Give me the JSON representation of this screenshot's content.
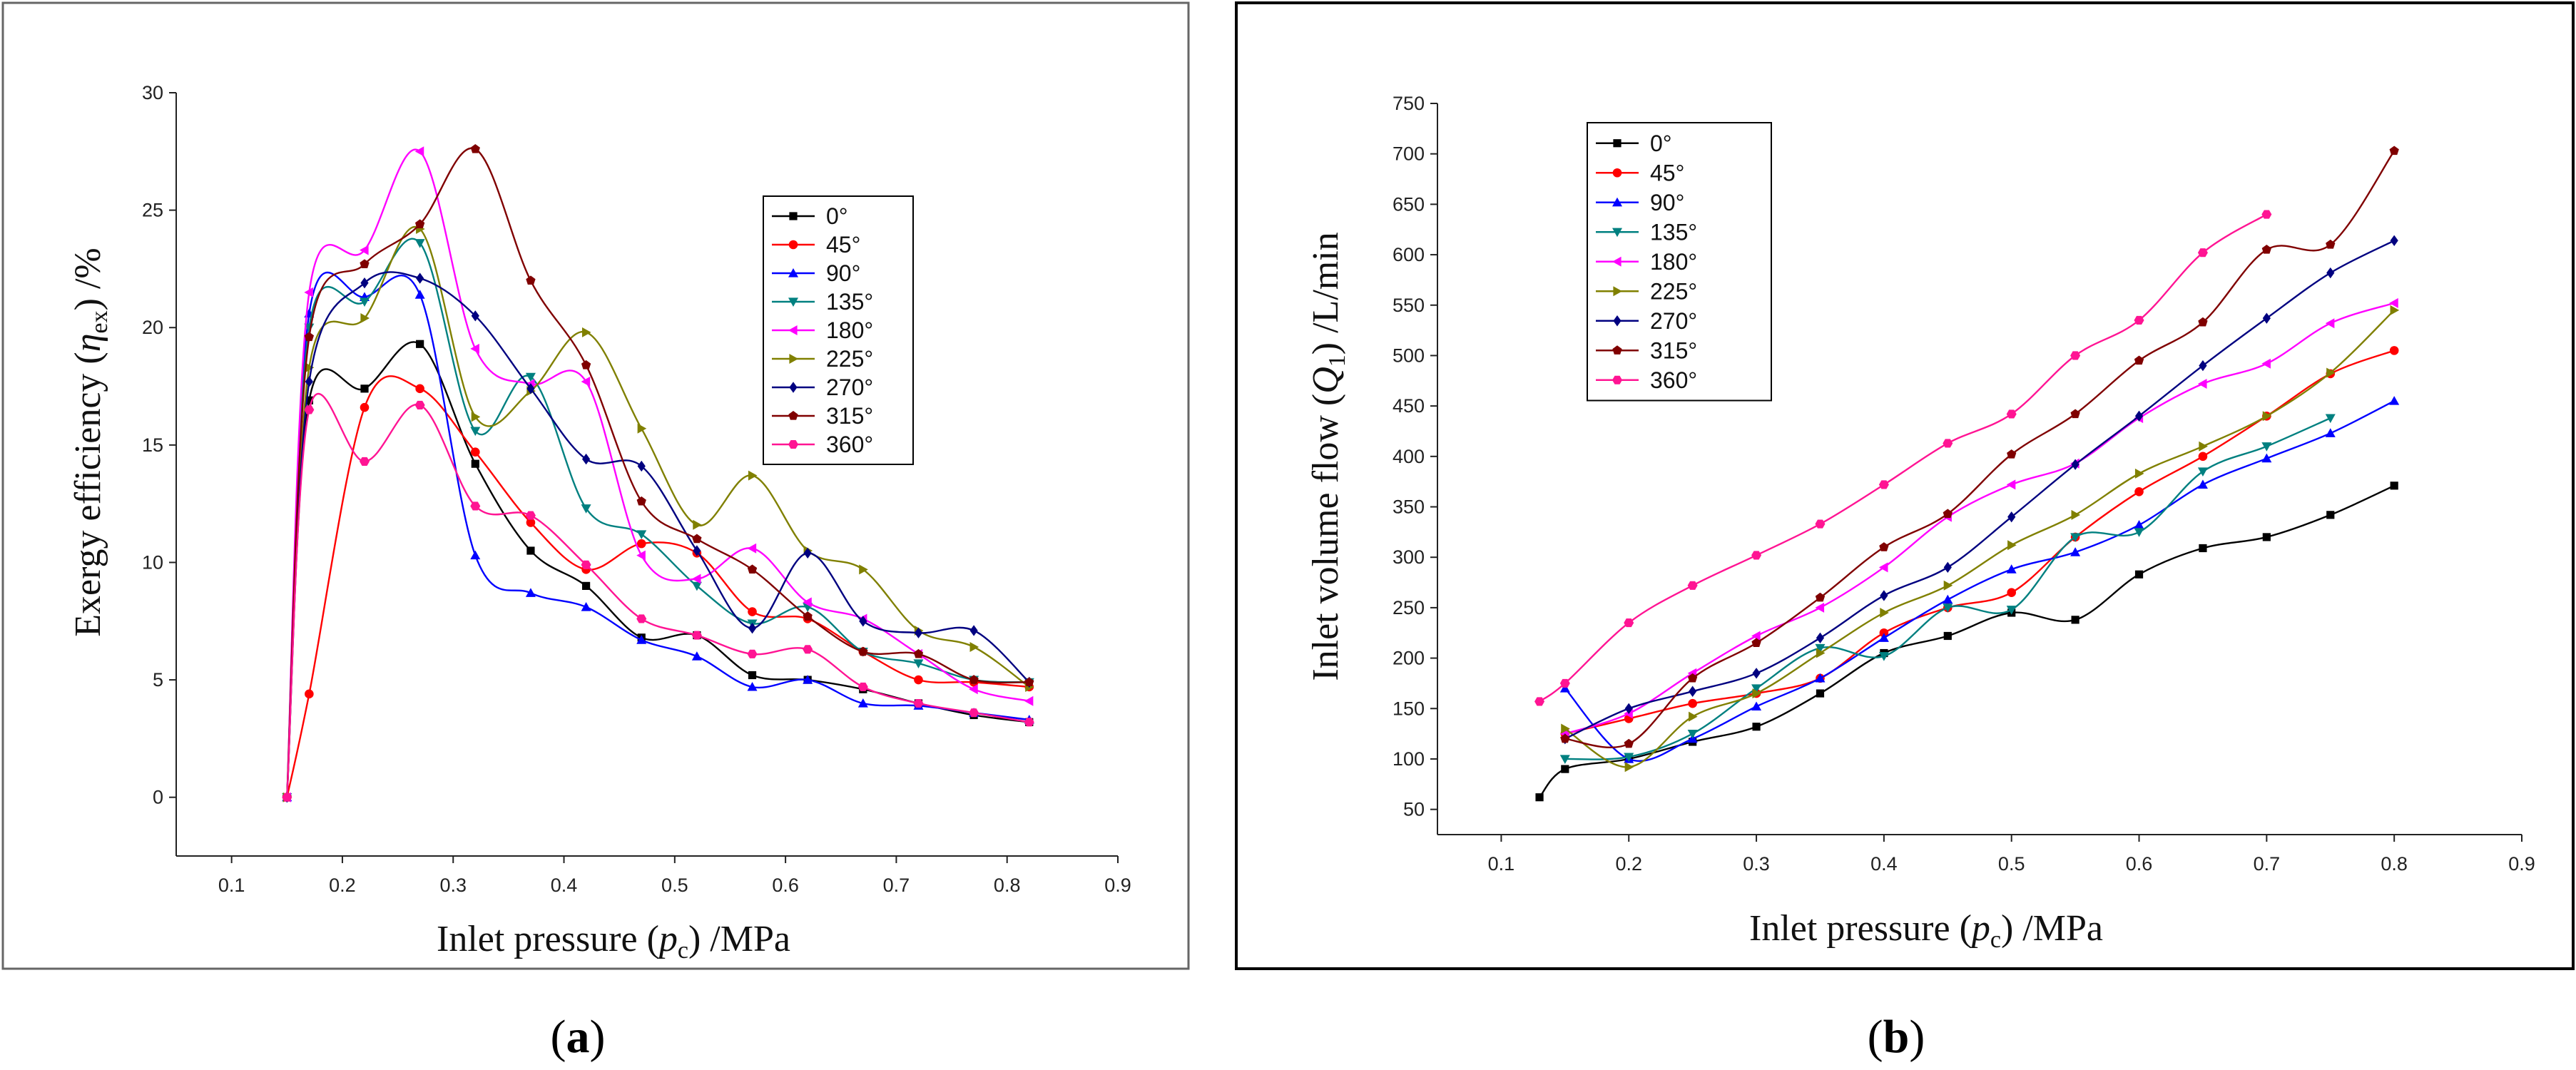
{
  "chart_data": [
    {
      "type": "line",
      "panel_label": "(a)",
      "xlabel": {
        "prefix": "Inlet pressure (",
        "var": "p",
        "sub": "c",
        "suffix": ") /MPa"
      },
      "ylabel": {
        "prefix": "Exergy efficiency (",
        "var": "η",
        "sub": "ex",
        "suffix": ") /%"
      },
      "xlim": [
        0.05,
        0.9
      ],
      "ylim": [
        -2.5,
        30
      ],
      "xticks": [
        "0.1",
        "0.2",
        "0.3",
        "0.4",
        "0.5",
        "0.6",
        "0.7",
        "0.8",
        "0.9"
      ],
      "xtick_values": [
        0.1,
        0.2,
        0.3,
        0.4,
        0.5,
        0.6,
        0.7,
        0.8,
        0.9
      ],
      "yticks": [
        "0",
        "5",
        "10",
        "15",
        "20",
        "25",
        "30"
      ],
      "ytick_values": [
        0,
        5,
        10,
        15,
        20,
        25,
        30
      ],
      "legend_position": "top-right",
      "series": [
        {
          "name": "0°",
          "color": "#000000",
          "marker": "square",
          "x": [
            0.15,
            0.17,
            0.22,
            0.27,
            0.32,
            0.37,
            0.42,
            0.47,
            0.52,
            0.57,
            0.62,
            0.67,
            0.72,
            0.77,
            0.82
          ],
          "values": [
            0,
            16.9,
            17.4,
            19.3,
            14.2,
            10.5,
            9.0,
            6.8,
            6.9,
            5.2,
            5.0,
            4.6,
            4.0,
            3.5,
            3.2
          ]
        },
        {
          "name": "45°",
          "color": "#ff0000",
          "marker": "circle",
          "x": [
            0.15,
            0.17,
            0.22,
            0.27,
            0.32,
            0.37,
            0.42,
            0.47,
            0.52,
            0.57,
            0.62,
            0.67,
            0.72,
            0.77,
            0.82
          ],
          "values": [
            0,
            4.4,
            16.6,
            17.4,
            14.7,
            11.7,
            9.7,
            10.8,
            10.4,
            7.9,
            7.6,
            6.2,
            5.0,
            4.9,
            4.7
          ]
        },
        {
          "name": "90°",
          "color": "#0000ff",
          "marker": "triangle-up",
          "x": [
            0.15,
            0.17,
            0.22,
            0.27,
            0.32,
            0.37,
            0.42,
            0.47,
            0.52,
            0.57,
            0.62,
            0.67,
            0.72,
            0.77,
            0.82
          ],
          "values": [
            0,
            20.6,
            21.3,
            21.4,
            10.3,
            8.7,
            8.1,
            6.7,
            6.0,
            4.7,
            5.0,
            4.0,
            3.9,
            3.6,
            3.3
          ]
        },
        {
          "name": "135°",
          "color": "#008080",
          "marker": "triangle-down",
          "x": [
            0.15,
            0.17,
            0.22,
            0.27,
            0.32,
            0.37,
            0.42,
            0.47,
            0.52,
            0.57,
            0.62,
            0.67,
            0.72,
            0.77,
            0.82
          ],
          "values": [
            0,
            20.0,
            21.1,
            23.6,
            15.6,
            17.9,
            12.3,
            11.2,
            9.0,
            7.4,
            8.1,
            6.2,
            5.7,
            5.0,
            4.9
          ]
        },
        {
          "name": "180°",
          "color": "#ff00ff",
          "marker": "triangle-left",
          "x": [
            0.15,
            0.17,
            0.22,
            0.27,
            0.32,
            0.37,
            0.42,
            0.47,
            0.52,
            0.57,
            0.62,
            0.67,
            0.72,
            0.77,
            0.82
          ],
          "values": [
            0,
            21.5,
            23.3,
            27.5,
            19.1,
            17.6,
            17.7,
            10.3,
            9.3,
            10.6,
            8.3,
            7.6,
            6.1,
            4.6,
            4.1
          ]
        },
        {
          "name": "225°",
          "color": "#808000",
          "marker": "triangle-right",
          "x": [
            0.15,
            0.17,
            0.22,
            0.27,
            0.32,
            0.37,
            0.42,
            0.47,
            0.52,
            0.57,
            0.62,
            0.67,
            0.72,
            0.77,
            0.82
          ],
          "values": [
            0,
            18.3,
            20.4,
            24.2,
            16.2,
            17.3,
            19.8,
            15.7,
            11.6,
            13.7,
            10.5,
            9.7,
            7.1,
            6.4,
            4.7
          ]
        },
        {
          "name": "270°",
          "color": "#000080",
          "marker": "diamond",
          "x": [
            0.15,
            0.17,
            0.22,
            0.27,
            0.32,
            0.37,
            0.42,
            0.47,
            0.52,
            0.57,
            0.62,
            0.67,
            0.72,
            0.77,
            0.82
          ],
          "values": [
            0,
            17.7,
            21.9,
            22.1,
            20.5,
            17.4,
            14.4,
            14.1,
            10.5,
            7.2,
            10.4,
            7.5,
            7.0,
            7.1,
            4.9
          ]
        },
        {
          "name": "315°",
          "color": "#800000",
          "marker": "pentagon",
          "x": [
            0.15,
            0.17,
            0.22,
            0.27,
            0.32,
            0.37,
            0.42,
            0.47,
            0.52,
            0.57,
            0.62,
            0.67,
            0.72,
            0.77,
            0.82
          ],
          "values": [
            0,
            19.6,
            22.7,
            24.4,
            27.6,
            22.0,
            18.4,
            12.6,
            11.0,
            9.7,
            7.7,
            6.2,
            6.1,
            5.0,
            4.9
          ]
        },
        {
          "name": "360°",
          "color": "#ff1493",
          "marker": "hexagon",
          "x": [
            0.15,
            0.17,
            0.22,
            0.27,
            0.32,
            0.37,
            0.42,
            0.47,
            0.52,
            0.57,
            0.62,
            0.67,
            0.72,
            0.77,
            0.82
          ],
          "values": [
            0,
            16.5,
            14.3,
            16.7,
            12.4,
            12.0,
            9.9,
            7.6,
            6.9,
            6.1,
            6.3,
            4.7,
            4.0,
            3.6,
            3.2
          ]
        }
      ]
    },
    {
      "type": "line",
      "panel_label": "(b)",
      "xlabel": {
        "prefix": "Inlet pressure (",
        "var": "p",
        "sub": "c",
        "suffix": ") /MPa"
      },
      "ylabel": {
        "prefix": "Inlet volume flow (",
        "var": "Q",
        "sub": "1",
        "suffix": ") /L/min"
      },
      "xlim": [
        0.05,
        0.9
      ],
      "ylim": [
        25,
        750
      ],
      "xticks": [
        "0.1",
        "0.2",
        "0.3",
        "0.4",
        "0.5",
        "0.6",
        "0.7",
        "0.8",
        "0.9"
      ],
      "xtick_values": [
        0.1,
        0.2,
        0.3,
        0.4,
        0.5,
        0.6,
        0.7,
        0.8,
        0.9
      ],
      "yticks": [
        "50",
        "100",
        "150",
        "200",
        "250",
        "300",
        "350",
        "400",
        "450",
        "500",
        "550",
        "600",
        "650",
        "700",
        "750"
      ],
      "ytick_values": [
        50,
        100,
        150,
        200,
        250,
        300,
        350,
        400,
        450,
        500,
        550,
        600,
        650,
        700,
        750
      ],
      "legend_position": "top-left",
      "series": [
        {
          "name": "0°",
          "color": "#000000",
          "marker": "square",
          "x": [
            0.13,
            0.15,
            0.2,
            0.25,
            0.3,
            0.35,
            0.4,
            0.45,
            0.5,
            0.55,
            0.6,
            0.65,
            0.7,
            0.75,
            0.8
          ],
          "values": [
            62,
            90,
            100,
            117,
            132,
            165,
            205,
            222,
            245,
            238,
            283,
            309,
            320,
            342,
            371
          ]
        },
        {
          "name": "45°",
          "color": "#ff0000",
          "marker": "circle",
          "x": [
            0.15,
            0.2,
            0.25,
            0.3,
            0.35,
            0.4,
            0.45,
            0.5,
            0.55,
            0.6,
            0.65,
            0.7,
            0.75,
            0.8
          ],
          "values": [
            125,
            140,
            155,
            165,
            180,
            225,
            250,
            265,
            320,
            365,
            400,
            440,
            482,
            505
          ]
        },
        {
          "name": "90°",
          "color": "#0000ff",
          "marker": "triangle-up",
          "x": [
            0.15,
            0.2,
            0.25,
            0.3,
            0.35,
            0.4,
            0.45,
            0.5,
            0.55,
            0.6,
            0.65,
            0.7,
            0.75,
            0.8
          ],
          "values": [
            170,
            100,
            120,
            152,
            180,
            220,
            258,
            288,
            305,
            332,
            372,
            398,
            423,
            455
          ]
        },
        {
          "name": "135°",
          "color": "#008080",
          "marker": "triangle-down",
          "x": [
            0.15,
            0.2,
            0.25,
            0.3,
            0.35,
            0.4,
            0.45,
            0.5,
            0.55,
            0.6,
            0.65,
            0.7,
            0.75
          ],
          "values": [
            100,
            102,
            125,
            170,
            210,
            202,
            250,
            248,
            320,
            325,
            385,
            410,
            438
          ]
        },
        {
          "name": "180°",
          "color": "#ff00ff",
          "marker": "triangle-left",
          "x": [
            0.15,
            0.2,
            0.25,
            0.3,
            0.35,
            0.4,
            0.45,
            0.5,
            0.55,
            0.6,
            0.65,
            0.7,
            0.75,
            0.8
          ],
          "values": [
            125,
            145,
            185,
            222,
            250,
            290,
            340,
            372,
            393,
            438,
            472,
            492,
            532,
            552
          ]
        },
        {
          "name": "225°",
          "color": "#808000",
          "marker": "triangle-right",
          "x": [
            0.15,
            0.2,
            0.25,
            0.3,
            0.35,
            0.4,
            0.45,
            0.5,
            0.55,
            0.6,
            0.65,
            0.7,
            0.75,
            0.8
          ],
          "values": [
            130,
            92,
            142,
            165,
            205,
            245,
            272,
            312,
            342,
            383,
            410,
            440,
            483,
            545
          ]
        },
        {
          "name": "270°",
          "color": "#000080",
          "marker": "diamond",
          "x": [
            0.15,
            0.2,
            0.25,
            0.3,
            0.35,
            0.4,
            0.45,
            0.5,
            0.55,
            0.6,
            0.65,
            0.7,
            0.75,
            0.8
          ],
          "values": [
            120,
            150,
            167,
            185,
            220,
            262,
            290,
            340,
            392,
            440,
            490,
            537,
            582,
            614
          ]
        },
        {
          "name": "315°",
          "color": "#800000",
          "marker": "pentagon",
          "x": [
            0.15,
            0.2,
            0.25,
            0.3,
            0.35,
            0.4,
            0.45,
            0.5,
            0.55,
            0.6,
            0.65,
            0.7,
            0.75,
            0.8
          ],
          "values": [
            120,
            115,
            180,
            215,
            260,
            310,
            343,
            402,
            442,
            495,
            533,
            605,
            610,
            703
          ]
        },
        {
          "name": "360°",
          "color": "#ff1493",
          "marker": "hexagon",
          "x": [
            0.13,
            0.15,
            0.2,
            0.25,
            0.3,
            0.35,
            0.4,
            0.45,
            0.5,
            0.55,
            0.6,
            0.65,
            0.7
          ],
          "values": [
            157,
            175,
            235,
            272,
            302,
            333,
            372,
            413,
            442,
            500,
            535,
            602,
            640
          ]
        }
      ]
    }
  ]
}
